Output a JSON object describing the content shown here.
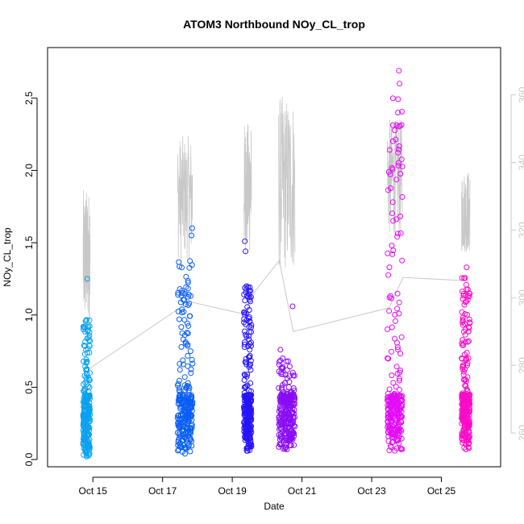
{
  "chart_data": {
    "type": "scatter",
    "title": "ATOM3 Northbound NOy_CL_trop",
    "xlabel": "Date",
    "ylabel": "NOy_CL_trop",
    "ylabel_right": "",
    "x_ticks": [
      "Oct 15",
      "Oct 17",
      "Oct 19",
      "Oct 21",
      "Oct 23",
      "Oct 25"
    ],
    "x_tick_days": [
      15,
      17,
      19,
      21,
      23,
      25
    ],
    "xlim_days": [
      13.7,
      26.7
    ],
    "y_ticks": [
      "0.0",
      "0.5",
      "1.0",
      "1.5",
      "2.0",
      "2.5"
    ],
    "ylim": [
      -0.05,
      2.85
    ],
    "y2_ticks": [
      "260",
      "280",
      "300",
      "320",
      "340",
      "360"
    ],
    "y2lim": [
      250,
      374
    ],
    "grid": false,
    "legend": "none",
    "flights": [
      {
        "start": 14.72,
        "end": 14.92,
        "color": "#0aa2f0",
        "y_min": 0.02,
        "y_max": 1.25,
        "outliers": [],
        "dense_max": 1.0
      },
      {
        "start": 17.43,
        "end": 17.86,
        "color": "#0a5ef5",
        "y_min": 0.04,
        "y_max": 1.6,
        "outliers": [
          [
            17.85,
            1.6
          ],
          [
            17.83,
            1.55
          ]
        ],
        "dense_max": 1.38
      },
      {
        "start": 19.33,
        "end": 19.55,
        "color": "#2614f8",
        "y_min": 0.06,
        "y_max": 1.51,
        "outliers": [
          [
            19.36,
            1.51
          ],
          [
            19.38,
            1.44
          ],
          [
            19.5,
            0.76
          ]
        ],
        "dense_max": 1.2
      },
      {
        "start": 20.33,
        "end": 20.8,
        "color": "#8a0cf5",
        "y_min": 0.07,
        "y_max": 1.06,
        "outliers": [
          [
            20.73,
            1.06
          ],
          [
            20.38,
            0.76
          ]
        ],
        "dense_max": 0.7
      },
      {
        "start": 23.45,
        "end": 23.88,
        "color": "#e20cf5",
        "y_min": 0.06,
        "y_max": 2.69,
        "outliers": [
          [
            23.78,
            2.69
          ],
          [
            23.8,
            2.6
          ]
        ],
        "dense_max": 2.5
      },
      {
        "start": 25.58,
        "end": 25.82,
        "color": "#fa0cc6",
        "y_min": 0.07,
        "y_max": 1.33,
        "outliers": [],
        "dense_max": 1.3
      }
    ],
    "secondary_trace": {
      "color": "#c8c8c8",
      "axis": "right",
      "transit_x": [
        14.9,
        17.5,
        17.7,
        19.4,
        19.5,
        20.35,
        20.75,
        23.5,
        23.9,
        25.8
      ],
      "transit_y": [
        279,
        297,
        299,
        295,
        300,
        311,
        290,
        297,
        306,
        305
      ],
      "flight_max": [
        332,
        348,
        352,
        360,
        353,
        338
      ]
    }
  }
}
